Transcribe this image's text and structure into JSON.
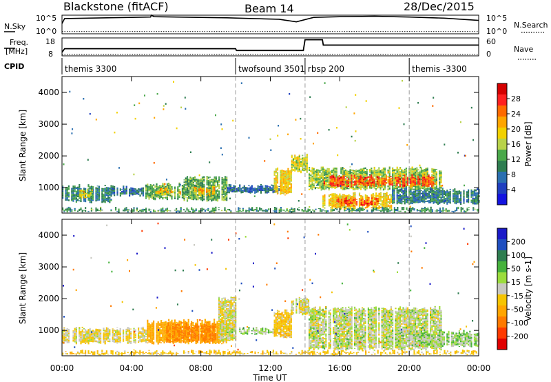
{
  "header": {
    "title": "Blackstone (fitACF)",
    "beam": "Beam 14",
    "date": "28/Dec/2015"
  },
  "top_panel": {
    "left_label": "N.Sky",
    "left_ticks": [
      "10^5",
      "10^0"
    ],
    "right_label": "N.Search",
    "right_ticks": [
      "10^5",
      "10^0"
    ]
  },
  "freq_panel": {
    "left_label_1": "Freq.",
    "left_label_2": "[MHz]",
    "left_ticks": [
      "18",
      "8"
    ],
    "right_label": "Nave",
    "right_ticks": [
      "60",
      "0"
    ]
  },
  "cpid": {
    "label": "CPID",
    "segments": [
      {
        "start_h": 0,
        "end_h": 10,
        "text": "themis 3300"
      },
      {
        "start_h": 10,
        "end_h": 14,
        "text": "twofsound 3501"
      },
      {
        "start_h": 14,
        "end_h": 20,
        "text": "rbsp 200"
      },
      {
        "start_h": 20,
        "end_h": 24,
        "text": "themis -3300"
      }
    ]
  },
  "colorbars": {
    "power": {
      "label": "Power [dB]",
      "ticks": [
        "28",
        "24",
        "20",
        "16",
        "12",
        "8",
        "4"
      ],
      "colors": [
        "#d40000",
        "#ff2020",
        "#ff6a00",
        "#ffa500",
        "#f2d100",
        "#b8d24a",
        "#4aa84a",
        "#2e7d50",
        "#2a6fb0",
        "#1f3fbf",
        "#1414e0"
      ]
    },
    "velocity": {
      "label": "Velocity [m s-1]",
      "ticks": [
        "200",
        "100",
        "50",
        "15",
        "-15",
        "-50",
        "-100",
        "-200"
      ],
      "colors": [
        "#1a1ac8",
        "#1f4fbf",
        "#2e7d50",
        "#46b23c",
        "#9bdc3c",
        "#c8c8c0",
        "#f5c400",
        "#ffa500",
        "#ff7a00",
        "#ff3a00",
        "#e00000"
      ]
    }
  },
  "chart_data": {
    "type": "heatmap",
    "x_unit": "Time UT (hours)",
    "xlabel": "Time UT",
    "x_ticks": [
      "00:00",
      "04:00",
      "08:00",
      "12:00",
      "16:00",
      "20:00",
      "00:00"
    ],
    "ylabel": "Slant Range [km]",
    "ylim": [
      200,
      4500
    ],
    "y_ticks": [
      "4000",
      "3000",
      "2000",
      "1000"
    ],
    "dashed_boundaries_hours": [
      10,
      14,
      20
    ],
    "panels": [
      {
        "name": "Power [dB]",
        "bands": [
          {
            "t0": 0.0,
            "t1": 2.8,
            "r_lo": 550,
            "r_hi": 1050,
            "value": 9
          },
          {
            "t0": 1.0,
            "t1": 1.8,
            "r_lo": 700,
            "r_hi": 900,
            "value": 16
          },
          {
            "t0": 2.8,
            "t1": 4.8,
            "r_lo": 750,
            "r_hi": 1000,
            "value": 7
          },
          {
            "t0": 4.8,
            "t1": 7.0,
            "r_lo": 650,
            "r_hi": 1100,
            "value": 12
          },
          {
            "t0": 5.2,
            "t1": 6.8,
            "r_lo": 800,
            "r_hi": 950,
            "value": 20
          },
          {
            "t0": 7.0,
            "t1": 9.5,
            "r_lo": 600,
            "r_hi": 1300,
            "value": 12
          },
          {
            "t0": 7.5,
            "t1": 8.8,
            "r_lo": 750,
            "r_hi": 1000,
            "value": 20
          },
          {
            "t0": 9.5,
            "t1": 12.5,
            "r_lo": 850,
            "r_hi": 1050,
            "value": 6
          },
          {
            "t0": 12.2,
            "t1": 13.2,
            "r_lo": 800,
            "r_hi": 1600,
            "value": 18
          },
          {
            "t0": 13.2,
            "t1": 14.2,
            "r_lo": 1500,
            "r_hi": 2000,
            "value": 16
          },
          {
            "t0": 14.2,
            "t1": 21.8,
            "r_lo": 950,
            "r_hi": 1600,
            "value": 14
          },
          {
            "t0": 14.8,
            "t1": 21.4,
            "r_lo": 1050,
            "r_hi": 1350,
            "value": 25
          },
          {
            "t0": 15.0,
            "t1": 19.0,
            "r_lo": 350,
            "r_hi": 800,
            "value": 18
          },
          {
            "t0": 15.8,
            "t1": 18.2,
            "r_lo": 450,
            "r_hi": 650,
            "value": 25
          },
          {
            "t0": 19.0,
            "t1": 24.0,
            "r_lo": 500,
            "r_hi": 950,
            "value": 8
          },
          {
            "t0": 0.0,
            "t1": 24.0,
            "r_lo": 250,
            "r_hi": 330,
            "value": 10
          }
        ]
      },
      {
        "name": "Velocity [m s-1]",
        "bands": [
          {
            "t0": 0.0,
            "t1": 4.8,
            "r_lo": 600,
            "r_hi": 1050,
            "value": -10
          },
          {
            "t0": 4.8,
            "t1": 9.5,
            "r_lo": 600,
            "r_hi": 1300,
            "value": -40
          },
          {
            "t0": 6.0,
            "t1": 8.8,
            "r_lo": 650,
            "r_hi": 1200,
            "value": -60
          },
          {
            "t0": 9.0,
            "t1": 10.0,
            "r_lo": 650,
            "r_hi": 2000,
            "value": -5
          },
          {
            "t0": 9.5,
            "t1": 12.5,
            "r_lo": 900,
            "r_hi": 1050,
            "value": 5
          },
          {
            "t0": 12.2,
            "t1": 13.2,
            "r_lo": 800,
            "r_hi": 1600,
            "value": -20
          },
          {
            "t0": 13.2,
            "t1": 14.2,
            "r_lo": 1500,
            "r_hi": 2000,
            "value": -5
          },
          {
            "t0": 14.2,
            "t1": 21.8,
            "r_lo": 400,
            "r_hi": 1700,
            "value": 0
          },
          {
            "t0": 19.0,
            "t1": 24.0,
            "r_lo": 500,
            "r_hi": 950,
            "value": 5
          },
          {
            "t0": 0.0,
            "t1": 24.0,
            "r_lo": 250,
            "r_hi": 330,
            "value": -20
          }
        ]
      }
    ],
    "noise_sky_line": [
      [
        0,
        0.55
      ],
      [
        0.15,
        0.82
      ],
      [
        4,
        0.88
      ],
      [
        5.1,
        0.9
      ],
      [
        5.15,
        1.0
      ],
      [
        5.3,
        0.92
      ],
      [
        9.5,
        0.86
      ],
      [
        11,
        0.82
      ],
      [
        12.5,
        0.78
      ],
      [
        13.5,
        0.64
      ],
      [
        14.5,
        0.88
      ],
      [
        16,
        0.92
      ],
      [
        18,
        0.94
      ],
      [
        20,
        0.9
      ],
      [
        22,
        0.84
      ],
      [
        24,
        0.72
      ]
    ],
    "noise_search_floor": 0.12,
    "freq_line_MHz": [
      [
        0,
        10
      ],
      [
        0.15,
        12
      ],
      [
        10,
        12
      ],
      [
        10.05,
        11
      ],
      [
        13.9,
        11
      ],
      [
        14.0,
        17
      ],
      [
        15.0,
        17
      ],
      [
        15.05,
        14
      ],
      [
        24,
        14
      ]
    ],
    "nave_floor": 5
  }
}
